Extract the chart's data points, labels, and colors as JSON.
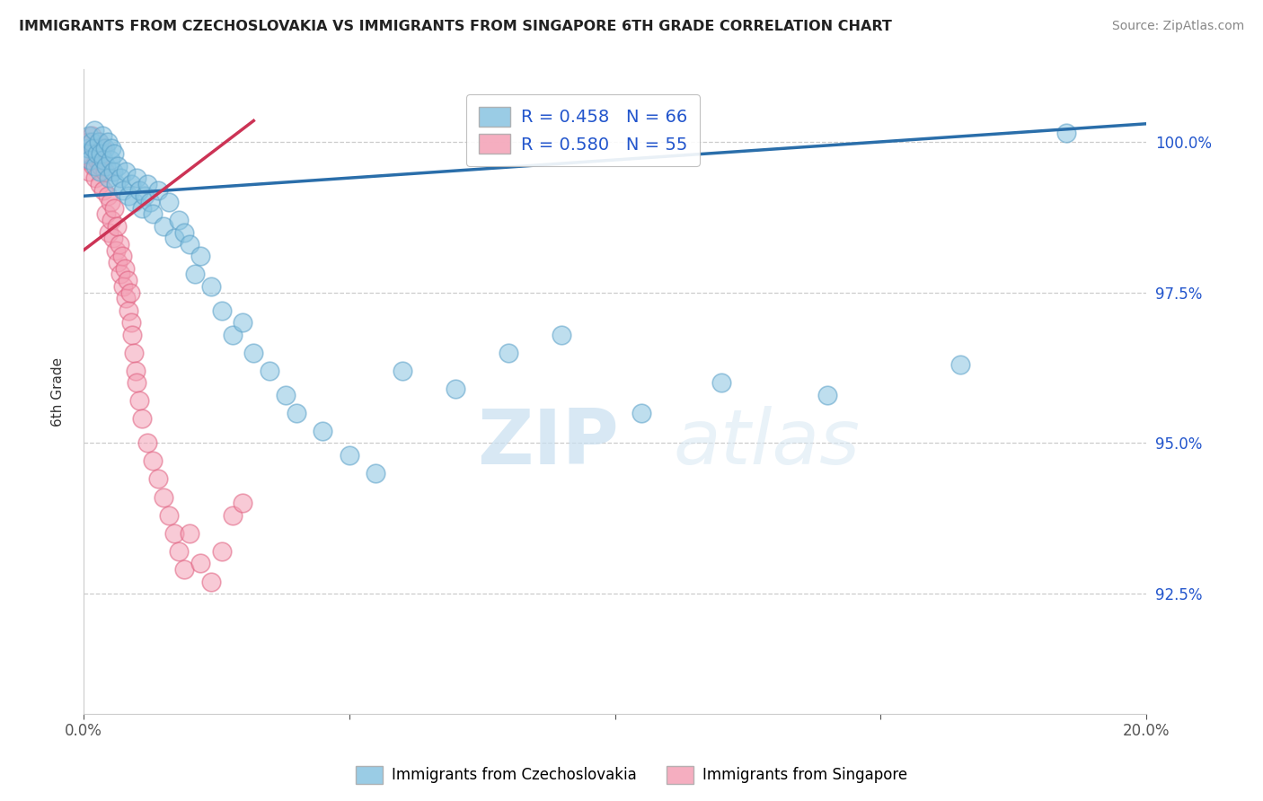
{
  "title": "IMMIGRANTS FROM CZECHOSLOVAKIA VS IMMIGRANTS FROM SINGAPORE 6TH GRADE CORRELATION CHART",
  "source": "Source: ZipAtlas.com",
  "ylabel": "6th Grade",
  "xlim": [
    0.0,
    20.0
  ],
  "ylim": [
    90.5,
    101.2
  ],
  "yticks": [
    92.5,
    95.0,
    97.5,
    100.0
  ],
  "ytick_labels": [
    "92.5%",
    "95.0%",
    "97.5%",
    "100.0%"
  ],
  "xticks": [
    0.0,
    5.0,
    10.0,
    15.0,
    20.0
  ],
  "xtick_labels": [
    "0.0%",
    "",
    "",
    "",
    "20.0%"
  ],
  "blue_color": "#89c4e1",
  "pink_color": "#f4a0b5",
  "blue_edge_color": "#5aa0c8",
  "pink_edge_color": "#e06080",
  "blue_line_color": "#2a6eaa",
  "pink_line_color": "#cc3355",
  "R_blue": 0.458,
  "N_blue": 66,
  "R_pink": 0.58,
  "N_pink": 55,
  "legend_label_blue": "Immigrants from Czechoslovakia",
  "legend_label_pink": "Immigrants from Singapore",
  "legend_text_color": "#2255cc",
  "blue_trend_x": [
    0.0,
    20.0
  ],
  "blue_trend_y": [
    99.1,
    100.3
  ],
  "pink_trend_x": [
    0.0,
    3.2
  ],
  "pink_trend_y": [
    98.2,
    100.35
  ],
  "blue_scatter_x": [
    0.05,
    0.08,
    0.1,
    0.12,
    0.15,
    0.18,
    0.2,
    0.22,
    0.25,
    0.28,
    0.3,
    0.32,
    0.35,
    0.38,
    0.4,
    0.42,
    0.45,
    0.48,
    0.5,
    0.52,
    0.55,
    0.58,
    0.6,
    0.65,
    0.7,
    0.75,
    0.8,
    0.85,
    0.9,
    0.95,
    1.0,
    1.05,
    1.1,
    1.15,
    1.2,
    1.25,
    1.3,
    1.4,
    1.5,
    1.6,
    1.7,
    1.8,
    1.9,
    2.0,
    2.1,
    2.2,
    2.4,
    2.6,
    2.8,
    3.0,
    3.2,
    3.5,
    3.8,
    4.0,
    4.5,
    5.0,
    5.5,
    6.0,
    7.0,
    8.0,
    9.0,
    10.5,
    12.0,
    14.0,
    16.5,
    18.5
  ],
  "blue_scatter_y": [
    99.8,
    99.9,
    100.1,
    99.7,
    100.0,
    99.9,
    100.2,
    99.6,
    99.8,
    100.0,
    99.5,
    99.8,
    100.1,
    99.7,
    99.9,
    99.6,
    100.0,
    99.4,
    99.7,
    99.9,
    99.5,
    99.8,
    99.3,
    99.6,
    99.4,
    99.2,
    99.5,
    99.1,
    99.3,
    99.0,
    99.4,
    99.2,
    98.9,
    99.1,
    99.3,
    99.0,
    98.8,
    99.2,
    98.6,
    99.0,
    98.4,
    98.7,
    98.5,
    98.3,
    97.8,
    98.1,
    97.6,
    97.2,
    96.8,
    97.0,
    96.5,
    96.2,
    95.8,
    95.5,
    95.2,
    94.8,
    94.5,
    96.2,
    95.9,
    96.5,
    96.8,
    95.5,
    96.0,
    95.8,
    96.3,
    100.15
  ],
  "pink_scatter_x": [
    0.05,
    0.08,
    0.1,
    0.12,
    0.15,
    0.18,
    0.2,
    0.22,
    0.25,
    0.28,
    0.3,
    0.32,
    0.35,
    0.38,
    0.4,
    0.42,
    0.45,
    0.48,
    0.5,
    0.52,
    0.55,
    0.58,
    0.6,
    0.62,
    0.65,
    0.68,
    0.7,
    0.72,
    0.75,
    0.78,
    0.8,
    0.82,
    0.85,
    0.88,
    0.9,
    0.92,
    0.95,
    0.98,
    1.0,
    1.05,
    1.1,
    1.2,
    1.3,
    1.4,
    1.5,
    1.6,
    1.7,
    1.8,
    1.9,
    2.0,
    2.2,
    2.4,
    2.6,
    2.8,
    3.0
  ],
  "pink_scatter_y": [
    99.7,
    100.0,
    99.5,
    99.8,
    100.1,
    99.6,
    99.9,
    99.4,
    99.7,
    100.0,
    99.3,
    99.6,
    99.9,
    99.2,
    99.5,
    98.8,
    99.1,
    98.5,
    99.0,
    98.7,
    98.4,
    98.9,
    98.2,
    98.6,
    98.0,
    98.3,
    97.8,
    98.1,
    97.6,
    97.9,
    97.4,
    97.7,
    97.2,
    97.5,
    97.0,
    96.8,
    96.5,
    96.2,
    96.0,
    95.7,
    95.4,
    95.0,
    94.7,
    94.4,
    94.1,
    93.8,
    93.5,
    93.2,
    92.9,
    93.5,
    93.0,
    92.7,
    93.2,
    93.8,
    94.0
  ]
}
